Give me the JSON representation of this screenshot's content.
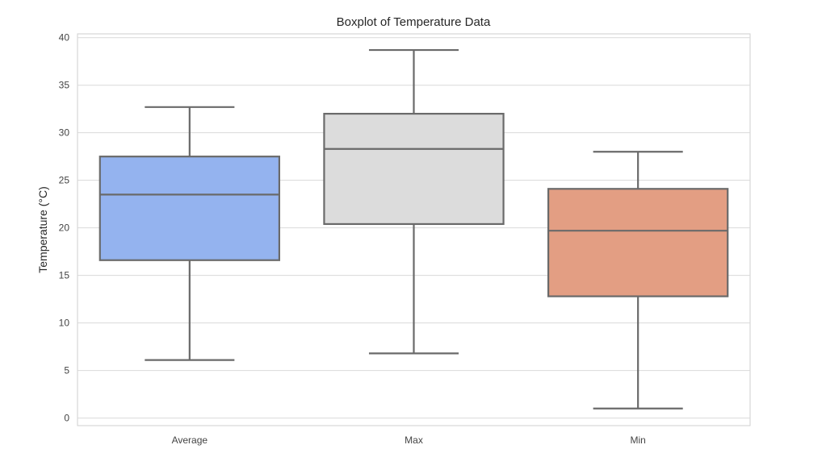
{
  "chart_data": {
    "type": "boxplot",
    "title": "Boxplot of Temperature Data",
    "xlabel": "",
    "ylabel": "Temperature (°C)",
    "ylim": [
      -0.8,
      40.4
    ],
    "yticks": [
      0,
      5,
      10,
      15,
      20,
      25,
      30,
      35,
      40
    ],
    "grid": true,
    "categories": [
      "Average",
      "Max",
      "Min"
    ],
    "boxes": [
      {
        "category": "Average",
        "whisker_low": 6.1,
        "q1": 16.6,
        "median": 23.5,
        "q3": 27.5,
        "whisker_high": 32.7,
        "color": "#94b3ef"
      },
      {
        "category": "Max",
        "whisker_low": 6.8,
        "q1": 20.4,
        "median": 28.3,
        "q3": 32.0,
        "whisker_high": 38.7,
        "color": "#dcdcdc"
      },
      {
        "category": "Min",
        "whisker_low": 1.0,
        "q1": 12.8,
        "median": 19.7,
        "q3": 24.1,
        "whisker_high": 28.0,
        "color": "#e39e83"
      }
    ],
    "line_color": "#6a6a6a",
    "grid_color": "#d9d9d9"
  }
}
